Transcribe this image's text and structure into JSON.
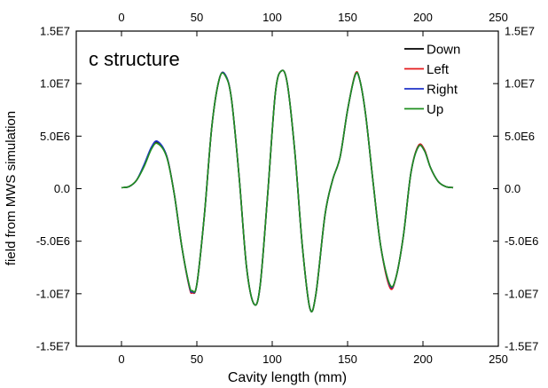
{
  "chart_data": {
    "type": "line",
    "title": "c structure",
    "xlabel": "Cavity length (mm)",
    "ylabel": "field from MWS simulation",
    "xlim": [
      -30,
      250
    ],
    "ylim": [
      -15000000,
      15000000
    ],
    "x_ticks": [
      0,
      50,
      100,
      150,
      200,
      250
    ],
    "x_tick_labels": [
      "0",
      "50",
      "100",
      "150",
      "200",
      "250"
    ],
    "y_ticks": [
      15000000,
      10000000,
      5000000,
      0,
      -5000000,
      -10000000,
      -15000000
    ],
    "y_tick_labels": [
      "1.5E7",
      "1.0E7",
      "5.0E6",
      "0.0",
      "-5.0E6",
      "-1.0E7",
      "-1.5E7"
    ],
    "grid": false,
    "legend_position": "top-right",
    "x": [
      0,
      5,
      10,
      15,
      20,
      24,
      30,
      35,
      40,
      45,
      47,
      50,
      55,
      60,
      65,
      69,
      73,
      78,
      83,
      88,
      92,
      97,
      102,
      106,
      110,
      115,
      120,
      125,
      129,
      135,
      140,
      145,
      150,
      155,
      158,
      162,
      167,
      172,
      178,
      182,
      187,
      192,
      197,
      201,
      205,
      210,
      215,
      220
    ],
    "series": [
      {
        "name": "Down",
        "color": "#000000",
        "values": [
          100000,
          200000,
          800000,
          2200000,
          3900000,
          4400000,
          3100000,
          -500000,
          -5500000,
          -9300000,
          -9900000,
          -9100000,
          -2500000,
          6000000,
          10500000,
          10800000,
          8500000,
          1200000,
          -7500000,
          -11000000,
          -9200000,
          -500000,
          9000000,
          11200000,
          10000000,
          3500000,
          -5500000,
          -11400000,
          -10000000,
          -2500000,
          800000,
          3000000,
          7500000,
          10800000,
          10400000,
          7000000,
          500000,
          -5500000,
          -9300000,
          -8500000,
          -4500000,
          1500000,
          4100000,
          3700000,
          2000000,
          700000,
          200000,
          100000
        ]
      },
      {
        "name": "Left",
        "color": "#e41a1c",
        "values": [
          100000,
          200000,
          800000,
          2200000,
          3900000,
          4300000,
          3100000,
          -500000,
          -5500000,
          -9400000,
          -9900000,
          -9100000,
          -2500000,
          6000000,
          10500000,
          10800000,
          8500000,
          1200000,
          -7500000,
          -11000000,
          -9200000,
          -500000,
          9000000,
          11200000,
          10000000,
          3500000,
          -5500000,
          -11400000,
          -10000000,
          -2500000,
          800000,
          3000000,
          7500000,
          10900000,
          10400000,
          7000000,
          500000,
          -5500000,
          -9400000,
          -8500000,
          -4500000,
          1500000,
          4100000,
          3700000,
          2000000,
          700000,
          200000,
          100000
        ]
      },
      {
        "name": "Right",
        "color": "#1f33c8",
        "values": [
          100000,
          200000,
          800000,
          2300000,
          4000000,
          4500000,
          3100000,
          -500000,
          -5500000,
          -9300000,
          -9800000,
          -9100000,
          -2500000,
          6000000,
          10500000,
          10800000,
          8500000,
          1200000,
          -7500000,
          -11000000,
          -9200000,
          -500000,
          9000000,
          11200000,
          10000000,
          3500000,
          -5500000,
          -11400000,
          -10000000,
          -2500000,
          800000,
          3000000,
          7500000,
          10800000,
          10400000,
          7000000,
          500000,
          -5500000,
          -9200000,
          -8500000,
          -4500000,
          1500000,
          4000000,
          3600000,
          2000000,
          700000,
          200000,
          100000
        ]
      },
      {
        "name": "Up",
        "color": "#1f8f1f",
        "values": [
          100000,
          200000,
          800000,
          2100000,
          3800000,
          4300000,
          3000000,
          -500000,
          -5500000,
          -9200000,
          -9700000,
          -9100000,
          -2500000,
          6000000,
          10500000,
          10700000,
          8500000,
          1200000,
          -7500000,
          -11000000,
          -9200000,
          -500000,
          9000000,
          11200000,
          10000000,
          3500000,
          -5500000,
          -11400000,
          -10000000,
          -2500000,
          800000,
          3000000,
          7500000,
          10800000,
          10400000,
          7000000,
          500000,
          -5500000,
          -9100000,
          -8500000,
          -4500000,
          1500000,
          4000000,
          3600000,
          2000000,
          700000,
          200000,
          100000
        ]
      }
    ]
  }
}
